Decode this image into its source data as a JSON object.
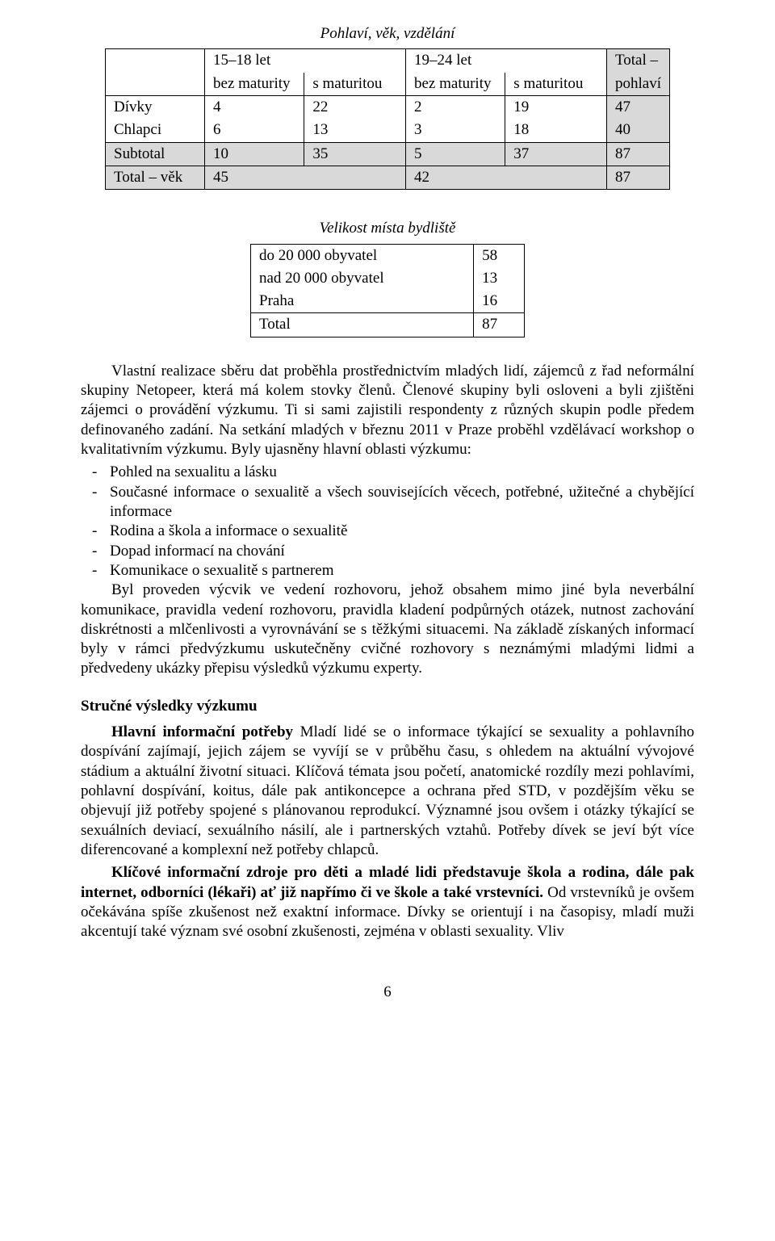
{
  "table1": {
    "title": "Pohlaví, věk, vzdělání",
    "age_headers": [
      "15–18 let",
      "19–24 let"
    ],
    "total_col_header_l1": "Total –",
    "total_col_header_l2": "pohlaví",
    "sub_headers": [
      "bez maturity",
      "s maturitou",
      "bez maturity",
      "s maturitou"
    ],
    "row_labels": [
      "Dívky",
      "Chlapci",
      "Subtotal",
      "Total – věk"
    ],
    "rows": {
      "divky": [
        "4",
        "22",
        "2",
        "19",
        "47"
      ],
      "chlapci": [
        "6",
        "13",
        "3",
        "18",
        "40"
      ],
      "subtotal": [
        "10",
        "35",
        "5",
        "37",
        "87"
      ],
      "totalvek_left": "45",
      "totalvek_right": "42",
      "totalvek_total": "87"
    },
    "shade_color": "#d9d9d9"
  },
  "table2": {
    "title": "Velikost místa bydliště",
    "rows": [
      [
        "do 20 000 obyvatel",
        "58"
      ],
      [
        "nad 20 000 obyvatel",
        "13"
      ],
      [
        "Praha",
        "16"
      ],
      [
        "Total",
        "87"
      ]
    ]
  },
  "para1_pre": "Vlastní realizace sběru dat proběhla prostřednictvím mladých lidí, zájemců z řad neformální skupiny Netopeer, která má kolem stovky členů. Členové skupiny byli osloveni a byli zjištěni zájemci o provádění výzkumu. Ti si sami zajistili respondenty z různých skupin podle předem definovaného zadání. Na setkání mladých v březnu 2011 v Praze proběhl vzdělávací workshop o kvalitativním výzkumu. Byly ujasněny hlavní oblasti výzkumu:",
  "bullets": [
    "Pohled na sexualitu a lásku",
    "Současné informace o sexualitě a všech souvisejících věcech, potřebné, užitečné a chybějící informace",
    "Rodina a škola a informace o sexualitě",
    "Dopad informací na chování",
    "Komunikace o sexualitě s partnerem"
  ],
  "para1_post": "Byl proveden výcvik ve vedení rozhovoru, jehož obsahem mimo jiné byla neverbální komunikace, pravidla vedení rozhovoru, pravidla kladení podpůrných otázek, nutnost zachování diskrétnosti a mlčenlivosti a vyrovnávání se s těžkými situacemi. Na základě získaných informací byly v rámci předvýzkumu uskutečněny cvičné rozhovory s neznámými mladými lidmi a předvedeny ukázky přepisu výsledků výzkumu experty.",
  "section_heading": "Stručné výsledky výzkumu",
  "para2_bold": "Hlavní informační potřeby",
  "para2_rest": " Mladí lidé se o informace týkající se sexuality a pohlavního dospívání zajímají, jejich zájem se vyvíjí se v průběhu času, s ohledem na aktuální vývojové stádium a aktuální životní situaci. Klíčová témata jsou početí, anatomické rozdíly mezi pohlavími, pohlavní dospívání, koitus, dále pak antikoncepce a ochrana před STD, v pozdějším věku se objevují již potřeby spojené s plánovanou reprodukcí. Významné jsou ovšem i otázky týkající se sexuálních deviací, sexuálního násilí, ale i partnerských vztahů. Potřeby dívek se jeví být více diferencované a komplexní než potřeby chlapců.",
  "para3_bold": "Klíčové informační zdroje pro děti a mladé lidi představuje škola a rodina, dále pak internet, odborníci (lékaři) ať již napřímo či ve škole a také vrstevníci.",
  "para3_rest": " Od vrstevníků je ovšem očekávána spíše zkušenost než exaktní informace. Dívky se orientují i na časopisy, mladí muži akcentují také význam své osobní zkušenosti, zejména v oblasti sexuality. Vliv",
  "page_number": "6"
}
